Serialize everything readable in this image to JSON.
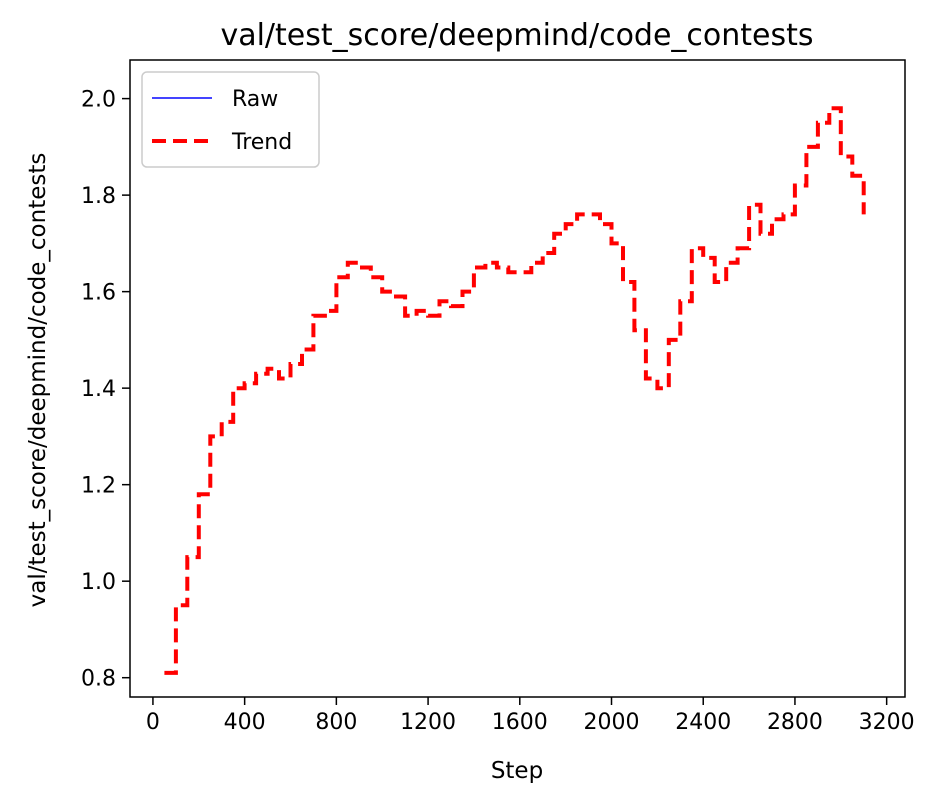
{
  "chart_data": {
    "type": "line",
    "title": "val/test_score/deepmind/code_contests",
    "xlabel": "Step",
    "ylabel": "val/test_score/deepmind/code_contests",
    "xlim": [
      -100,
      3280
    ],
    "ylim": [
      0.76,
      2.08
    ],
    "xticks": [
      0,
      400,
      800,
      1200,
      1600,
      2000,
      2400,
      2800,
      3200
    ],
    "yticks": [
      0.8,
      1.0,
      1.2,
      1.4,
      1.6,
      1.8,
      2.0
    ],
    "xtick_labels": [
      "0",
      "400",
      "800",
      "1200",
      "1600",
      "2000",
      "2400",
      "2800",
      "3200"
    ],
    "ytick_labels": [
      "0.8",
      "1.0",
      "1.2",
      "1.4",
      "1.6",
      "1.8",
      "2.0"
    ],
    "grid": false,
    "legend": {
      "position": "top-left",
      "entries": [
        "Raw",
        "Trend"
      ]
    },
    "series": [
      {
        "name": "Raw",
        "color": "#4444ff",
        "style": "solid",
        "x": [],
        "y": []
      },
      {
        "name": "Trend",
        "color": "#ff0000",
        "style": "dashed",
        "x": [
          50,
          100,
          150,
          200,
          250,
          300,
          350,
          400,
          450,
          500,
          550,
          600,
          650,
          700,
          750,
          800,
          850,
          900,
          950,
          1000,
          1050,
          1100,
          1150,
          1200,
          1250,
          1300,
          1350,
          1400,
          1450,
          1500,
          1550,
          1600,
          1650,
          1700,
          1750,
          1800,
          1850,
          1900,
          1950,
          2000,
          2050,
          2100,
          2150,
          2200,
          2250,
          2300,
          2350,
          2400,
          2450,
          2500,
          2550,
          2600,
          2650,
          2700,
          2750,
          2800,
          2850,
          2900,
          2950,
          3000,
          3050,
          3100
        ],
        "y": [
          0.81,
          0.95,
          1.05,
          1.18,
          1.3,
          1.33,
          1.4,
          1.41,
          1.43,
          1.44,
          1.42,
          1.45,
          1.48,
          1.55,
          1.56,
          1.63,
          1.66,
          1.65,
          1.63,
          1.6,
          1.59,
          1.55,
          1.56,
          1.55,
          1.58,
          1.57,
          1.6,
          1.65,
          1.66,
          1.65,
          1.64,
          1.64,
          1.66,
          1.68,
          1.72,
          1.74,
          1.76,
          1.76,
          1.74,
          1.7,
          1.62,
          1.52,
          1.42,
          1.4,
          1.5,
          1.58,
          1.69,
          1.67,
          1.62,
          1.66,
          1.69,
          1.78,
          1.72,
          1.75,
          1.76,
          1.82,
          1.9,
          1.95,
          1.98,
          1.88,
          1.84,
          1.76
        ]
      }
    ]
  }
}
